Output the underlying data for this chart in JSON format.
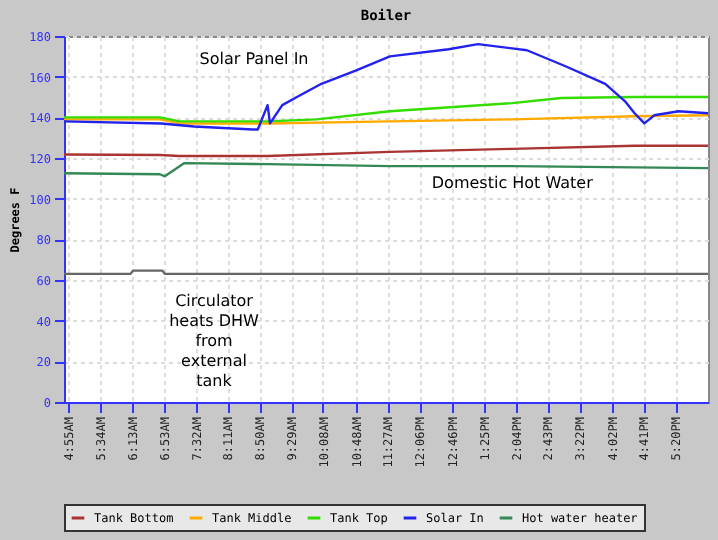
{
  "chart_data": {
    "type": "line",
    "title": "Boiler",
    "ylabel": "Degrees F",
    "xlim": [
      4.84,
      18.0
    ],
    "ylim": [
      0,
      180
    ],
    "yticks": [
      0,
      20,
      40,
      60,
      80,
      100,
      120,
      140,
      160,
      180
    ],
    "xticks": [
      {
        "value": 4.917,
        "label": "4:55AM"
      },
      {
        "value": 5.57,
        "label": "5:34AM"
      },
      {
        "value": 6.22,
        "label": "6:13AM"
      },
      {
        "value": 6.88,
        "label": "6:53AM"
      },
      {
        "value": 7.53,
        "label": "7:32AM"
      },
      {
        "value": 8.18,
        "label": "8:11AM"
      },
      {
        "value": 8.83,
        "label": "8:50AM"
      },
      {
        "value": 9.48,
        "label": "9:29AM"
      },
      {
        "value": 10.13,
        "label": "10:08AM"
      },
      {
        "value": 10.8,
        "label": "10:48AM"
      },
      {
        "value": 11.45,
        "label": "11:27AM"
      },
      {
        "value": 12.1,
        "label": "12:06PM"
      },
      {
        "value": 12.77,
        "label": "12:46PM"
      },
      {
        "value": 13.42,
        "label": "1:25PM"
      },
      {
        "value": 14.07,
        "label": "2:04PM"
      },
      {
        "value": 14.72,
        "label": "2:43PM"
      },
      {
        "value": 15.37,
        "label": "3:22PM"
      },
      {
        "value": 16.03,
        "label": "4:02PM"
      },
      {
        "value": 16.68,
        "label": "4:41PM"
      },
      {
        "value": 17.33,
        "label": "5:20PM"
      }
    ],
    "grid": true,
    "legend": "bottom",
    "series": [
      {
        "name": "Tank Bottom",
        "color": "#aa3333",
        "x": [
          4.84,
          6.8,
          7.2,
          9.0,
          11.5,
          14.0,
          16.5,
          18.0
        ],
        "values": [
          121.7,
          121.5,
          121,
          121,
          123,
          124.5,
          126,
          126
        ]
      },
      {
        "name": "Tank Middle",
        "color": "#ffaa00",
        "x": [
          4.84,
          6.8,
          7.2,
          9.0,
          11.5,
          14.0,
          16.5,
          18.0
        ],
        "values": [
          139,
          139,
          137,
          137,
          138,
          139,
          140.5,
          141
        ]
      },
      {
        "name": "Tank Top",
        "color": "#33dd00",
        "x": [
          4.84,
          6.8,
          7.2,
          9.0,
          10.0,
          11.5,
          14.0,
          15.0,
          16.5,
          18.0
        ],
        "values": [
          140,
          140,
          138,
          138,
          139,
          143,
          147,
          149.5,
          150,
          150
        ]
      },
      {
        "name": "Solar In",
        "color": "#2222ee",
        "x": [
          4.84,
          6.83,
          7.5,
          8.7,
          8.8,
          9.0,
          9.05,
          9.3,
          9.6,
          10.1,
          10.8,
          11.5,
          12.7,
          13.3,
          14.3,
          15.1,
          15.9,
          16.3,
          16.5,
          16.7,
          16.9,
          17.4,
          18.0
        ],
        "values": [
          138,
          137,
          135.5,
          134,
          134,
          146,
          137,
          146,
          150,
          156.5,
          163,
          170,
          173.5,
          176,
          173,
          165,
          156.5,
          148,
          142,
          137,
          141,
          143,
          142
        ]
      },
      {
        "name": "Hot water heater",
        "color": "#338855",
        "x": [
          4.84,
          6.8,
          6.9,
          7.3,
          9.0,
          11.5,
          14.0,
          18.0
        ],
        "values": [
          112.5,
          112,
          111,
          117.5,
          117,
          116,
          116,
          115
        ]
      },
      {
        "color": "#666666",
        "x": [
          4.84,
          6.2,
          6.25,
          6.85,
          6.9,
          18.0
        ],
        "values": [
          63,
          63,
          64.6,
          64.6,
          63,
          63
        ]
      }
    ],
    "annotations": [
      "Solar Panel In",
      {
        "text": "Domestic Hot Water",
        "x": 14.0,
        "y": 116
      },
      "Circulator\nheats DHW\nfrom\nexternal\ntank"
    ]
  }
}
